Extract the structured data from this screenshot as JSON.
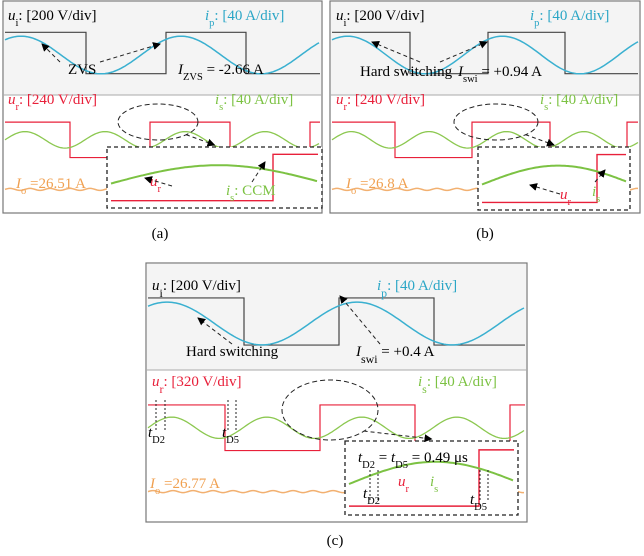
{
  "panels": [
    {
      "caption": "(a)",
      "labels": [
        {
          "parts": [
            {
              "text": "u",
              "style": "i"
            },
            {
              "text": "i",
              "style": "sub"
            },
            {
              "text": ": [200 V/div]",
              "style": "n"
            }
          ]
        },
        {
          "parts": [
            {
              "text": "i",
              "style": "i"
            },
            {
              "text": "p",
              "style": "sub"
            },
            {
              "text": ": [40 A/div]",
              "style": "n"
            }
          ]
        },
        {
          "parts": [
            {
              "text": "ZVS",
              "style": "n"
            }
          ]
        },
        {
          "parts": [
            {
              "text": "I",
              "style": "i"
            },
            {
              "text": "ZVS",
              "style": "sub"
            },
            {
              "text": " = -2.66 A",
              "style": "n"
            }
          ]
        },
        {
          "parts": [
            {
              "text": "u",
              "style": "i"
            },
            {
              "text": "r",
              "style": "sub"
            },
            {
              "text": ": [240 V/div]",
              "style": "n"
            }
          ]
        },
        {
          "parts": [
            {
              "text": "i",
              "style": "i"
            },
            {
              "text": "s",
              "style": "sub"
            },
            {
              "text": ": [40 A/div]",
              "style": "n"
            }
          ]
        },
        {
          "parts": [
            {
              "text": "u",
              "style": "i"
            },
            {
              "text": "r",
              "style": "sub"
            }
          ]
        },
        {
          "parts": [
            {
              "text": "i",
              "style": "i"
            },
            {
              "text": "s",
              "style": "sub"
            },
            {
              "text": ": CCM",
              "style": "n"
            }
          ]
        },
        {
          "parts": [
            {
              "text": "I",
              "style": "i"
            },
            {
              "text": "o",
              "style": "sub"
            },
            {
              "text": " =26.51 A",
              "style": "n"
            }
          ]
        }
      ]
    },
    {
      "caption": "(b)",
      "labels": [
        {
          "parts": [
            {
              "text": "u",
              "style": "i"
            },
            {
              "text": "i",
              "style": "sub"
            },
            {
              "text": ": [200 V/div]",
              "style": "n"
            }
          ]
        },
        {
          "parts": [
            {
              "text": "i",
              "style": "i"
            },
            {
              "text": "p",
              "style": "sub"
            },
            {
              "text": ": [40 A/div]",
              "style": "n"
            }
          ]
        },
        {
          "parts": [
            {
              "text": "Hard switching",
              "style": "n"
            }
          ]
        },
        {
          "parts": [
            {
              "text": "I",
              "style": "i"
            },
            {
              "text": "swi",
              "style": "sub"
            },
            {
              "text": " = +0.94 A",
              "style": "n"
            }
          ]
        },
        {
          "parts": [
            {
              "text": "u",
              "style": "i"
            },
            {
              "text": "r",
              "style": "sub"
            },
            {
              "text": ": [240 V/div]",
              "style": "n"
            }
          ]
        },
        {
          "parts": [
            {
              "text": "i",
              "style": "i"
            },
            {
              "text": "s",
              "style": "sub"
            },
            {
              "text": ": [40 A/div]",
              "style": "n"
            }
          ]
        },
        {
          "parts": [
            {
              "text": "I",
              "style": "i"
            },
            {
              "text": "o",
              "style": "sub"
            },
            {
              "text": " =26.8 A",
              "style": "n"
            }
          ]
        },
        {
          "parts": [
            {
              "text": "u",
              "style": "i"
            },
            {
              "text": "r",
              "style": "sub"
            }
          ]
        },
        {
          "parts": [
            {
              "text": "i",
              "style": "i"
            },
            {
              "text": "s",
              "style": "sub"
            }
          ]
        }
      ]
    },
    {
      "caption": "(c)",
      "labels": [
        {
          "parts": [
            {
              "text": "u",
              "style": "i"
            },
            {
              "text": "i",
              "style": "sub"
            },
            {
              "text": ": [200 V/div]",
              "style": "n"
            }
          ]
        },
        {
          "parts": [
            {
              "text": "i",
              "style": "i"
            },
            {
              "text": "p",
              "style": "sub"
            },
            {
              "text": ": [40 A/div]",
              "style": "n"
            }
          ]
        },
        {
          "parts": [
            {
              "text": "Hard switching",
              "style": "n"
            }
          ]
        },
        {
          "parts": [
            {
              "text": "I",
              "style": "i"
            },
            {
              "text": "swi",
              "style": "sub"
            },
            {
              "text": " = +0.4 A",
              "style": "n"
            }
          ]
        },
        {
          "parts": [
            {
              "text": "u",
              "style": "i"
            },
            {
              "text": "r",
              "style": "sub"
            },
            {
              "text": ": [320 V/div]",
              "style": "n"
            }
          ]
        },
        {
          "parts": [
            {
              "text": "i",
              "style": "i"
            },
            {
              "text": "s",
              "style": "sub"
            },
            {
              "text": ": [40 A/div]",
              "style": "n"
            }
          ]
        },
        {
          "parts": [
            {
              "text": "t",
              "style": "i"
            },
            {
              "text": "D2",
              "style": "sub"
            }
          ]
        },
        {
          "parts": [
            {
              "text": "t",
              "style": "i"
            },
            {
              "text": "D5",
              "style": "sub"
            }
          ]
        },
        {
          "parts": [
            {
              "text": "t",
              "style": "i"
            },
            {
              "text": "D2",
              "style": "sub"
            },
            {
              "text": " = ",
              "style": "n"
            },
            {
              "text": "t",
              "style": "i"
            },
            {
              "text": "D5",
              "style": "sub"
            },
            {
              "text": " = 0.49 μs",
              "style": "n"
            }
          ]
        },
        {
          "parts": [
            {
              "text": "I",
              "style": "i"
            },
            {
              "text": "o",
              "style": "sub"
            },
            {
              "text": " =26.77 A",
              "style": "n"
            }
          ]
        },
        {
          "parts": [
            {
              "text": "t",
              "style": "i"
            },
            {
              "text": "D2",
              "style": "sub"
            }
          ]
        },
        {
          "parts": [
            {
              "text": "u",
              "style": "i"
            },
            {
              "text": "r",
              "style": "sub"
            }
          ]
        },
        {
          "parts": [
            {
              "text": "i",
              "style": "i"
            },
            {
              "text": "s",
              "style": "sub"
            }
          ]
        },
        {
          "parts": [
            {
              "text": "t",
              "style": "i"
            },
            {
              "text": "D5",
              "style": "sub"
            }
          ]
        }
      ]
    }
  ]
}
